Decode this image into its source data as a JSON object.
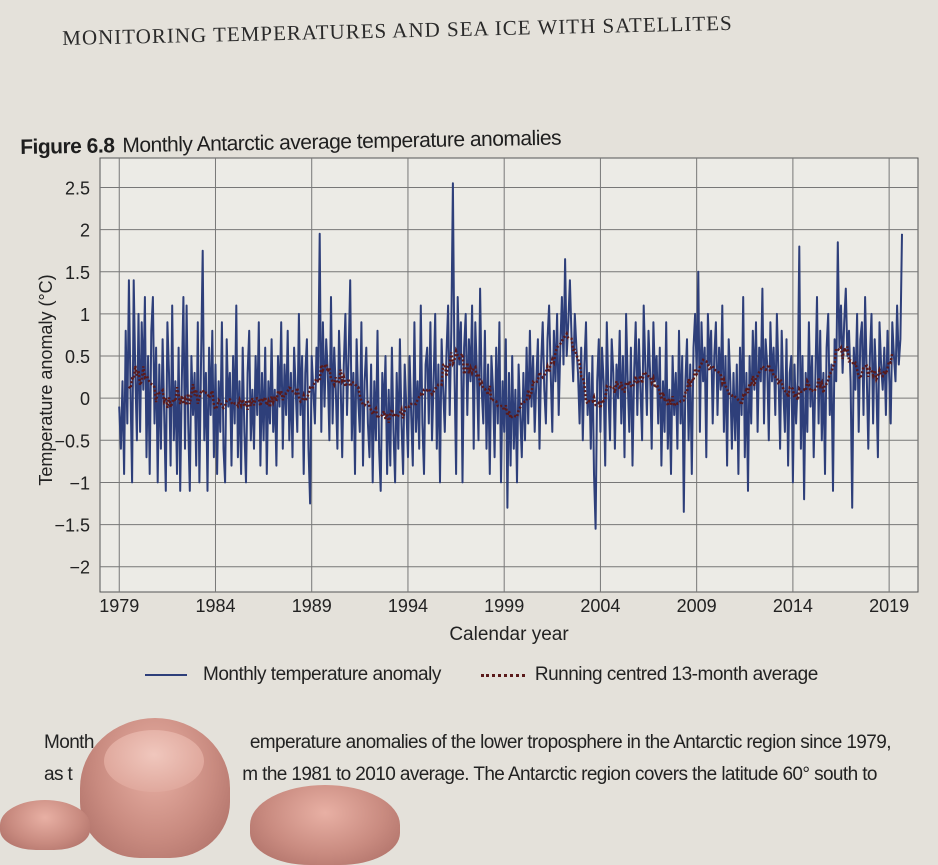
{
  "page": {
    "running_header": "MONITORING TEMPERATURES AND SEA ICE WITH SATELLITES",
    "figure_label": "Figure 6.8",
    "figure_title": "Monthly Antarctic average temperature anomalies",
    "caption_line1_left": "Month",
    "caption_line1_right": "emperature anomalies of the lower troposphere in the Antarctic region since 1979,",
    "caption_line2_left": "as t",
    "caption_line2_right": "m the 1981 to 2010 average. The Antarctic region covers the latitude 60° south to"
  },
  "chart_data": {
    "type": "line",
    "title": "Monthly Antarctic average temperature anomalies",
    "xlabel": "Calendar year",
    "ylabel": "Temperature anomaly (°C)",
    "xlim": [
      1978,
      2020.5
    ],
    "ylim": [
      -2.3,
      2.85
    ],
    "xticks": [
      "1979",
      "1984",
      "1989",
      "1994",
      "1999",
      "2004",
      "2009",
      "2014",
      "2019"
    ],
    "yticks": [
      "2.5",
      "2",
      "1.5",
      "1",
      "0.5",
      "0",
      "−0.5",
      "−1",
      "−1.5",
      "−2"
    ],
    "ytick_values": [
      2.5,
      2,
      1.5,
      1,
      0.5,
      0,
      -0.5,
      -1,
      -1.5,
      -2
    ],
    "grid": true,
    "legend_position": "bottom",
    "legend": [
      "Monthly temperature anomaly",
      "Running centred 13-month average"
    ],
    "colors": {
      "monthly": "#2e3f7a",
      "average": "#5a1a1a"
    },
    "start_year": 1979,
    "running_window_months": 13,
    "series": [
      {
        "name": "Monthly temperature anomaly",
        "values": [
          -0.1,
          -0.6,
          0.2,
          -0.9,
          0.8,
          -0.3,
          1.4,
          0.1,
          -1.0,
          1.4,
          0.3,
          -0.5,
          1.0,
          -0.4,
          0.9,
          0.1,
          1.2,
          -0.7,
          0.5,
          -0.9,
          0.8,
          1.2,
          -0.3,
          0.6,
          -1.0,
          0.4,
          -0.6,
          0.7,
          -0.2,
          -1.1,
          0.9,
          0.3,
          -0.8,
          1.1,
          -0.5,
          0.2,
          -0.9,
          0.6,
          -1.1,
          0.2,
          1.2,
          -0.6,
          1.1,
          -0.3,
          -1.1,
          0.5,
          -0.2,
          0.3,
          -0.8,
          0.9,
          -1.0,
          0.4,
          1.75,
          -0.5,
          0.3,
          -1.1,
          0.6,
          -0.2,
          0.8,
          -0.7,
          0.4,
          -0.9,
          0.2,
          -0.4,
          0.9,
          -0.6,
          -1.0,
          0.7,
          -0.1,
          0.3,
          -0.8,
          0.5,
          -0.3,
          1.1,
          -0.7,
          0.2,
          -0.9,
          0.6,
          -0.4,
          -1.0,
          0.3,
          0.8,
          -0.5,
          0.1,
          -0.6,
          0.5,
          -0.2,
          0.9,
          -0.8,
          0.3,
          -0.5,
          0.6,
          -0.9,
          0.2,
          -0.3,
          0.7,
          -0.4,
          0.1,
          -0.8,
          0.5,
          -0.1,
          0.9,
          -0.6,
          0.4,
          -0.2,
          0.8,
          -0.5,
          0.3,
          -0.7,
          0.6,
          0.1,
          -0.4,
          1.0,
          -0.2,
          0.5,
          -0.9,
          0.3,
          0.7,
          -0.6,
          -1.25,
          0.5,
          0.1,
          -0.3,
          0.6,
          0.2,
          1.95,
          -0.4,
          0.9,
          -0.1,
          0.7,
          0.3,
          -0.5,
          1.2,
          -0.3,
          0.6,
          0.1,
          -0.6,
          0.8,
          0.2,
          -0.7,
          0.4,
          1.0,
          -0.2,
          0.5,
          1.4,
          -0.5,
          0.3,
          -0.9,
          0.7,
          0.0,
          -0.4,
          0.9,
          -0.8,
          0.2,
          0.6,
          -0.3,
          -0.7,
          0.4,
          -1.0,
          0.2,
          -0.5,
          0.8,
          -0.6,
          -1.1,
          0.3,
          -0.2,
          0.5,
          -0.9,
          0.1,
          -0.8,
          0.6,
          -0.4,
          -1.0,
          0.3,
          -0.6,
          0.7,
          -0.3,
          -0.9,
          0.4,
          -0.1,
          -0.7,
          0.5,
          -0.2,
          -0.8,
          0.9,
          -0.4,
          0.2,
          -0.6,
          1.1,
          -0.3,
          -0.9,
          0.4,
          0.6,
          -0.3,
          0.9,
          -0.5,
          0.2,
          1.0,
          -0.6,
          0.4,
          -1.0,
          0.7,
          0.1,
          -0.4,
          0.5,
          1.1,
          -0.2,
          0.8,
          2.55,
          0.3,
          -0.9,
          1.2,
          0.4,
          0.9,
          -1.0,
          0.6,
          1.0,
          -0.2,
          0.7,
          0.2,
          1.1,
          -0.6,
          0.9,
          0.3,
          -0.5,
          1.3,
          0.1,
          -0.3,
          0.8,
          -0.6,
          0.4,
          -0.9,
          0.5,
          0.1,
          -0.7,
          0.6,
          -0.3,
          0.9,
          -1.0,
          0.2,
          -0.4,
          0.7,
          -1.3,
          0.3,
          -0.8,
          0.5,
          -0.6,
          0.1,
          -1.0,
          0.4,
          -0.2,
          -0.7,
          0.3,
          -0.5,
          0.6,
          -0.3,
          0.8,
          -0.1,
          0.5,
          -0.4,
          0.2,
          0.7,
          -0.6,
          0.4,
          0.9,
          0.1,
          -0.3,
          0.7,
          1.1,
          0.3,
          -0.4,
          0.8,
          0.2,
          1.0,
          -0.2,
          0.6,
          1.2,
          0.4,
          1.65,
          0.5,
          0.9,
          1.4,
          0.7,
          0.2,
          1.0,
          0.6,
          0.3,
          -0.3,
          0.6,
          -0.5,
          0.4,
          0.9,
          -0.2,
          0.3,
          -0.6,
          0.5,
          -0.9,
          -1.55,
          0.2,
          0.7,
          -0.4,
          0.6,
          0.2,
          -0.8,
          0.9,
          0.1,
          -0.5,
          0.7,
          0.3,
          -0.6,
          0.4,
          0.0,
          0.8,
          -0.3,
          0.5,
          -0.7,
          1.0,
          0.2,
          -0.4,
          0.6,
          -0.8,
          0.3,
          0.9,
          -0.2,
          0.7,
          0.1,
          -0.5,
          1.1,
          0.4,
          -0.2,
          0.8,
          0.3,
          -0.6,
          0.9,
          0.2,
          0.5,
          -0.3,
          0.6,
          -0.8,
          0.2,
          -0.4,
          0.9,
          -0.6,
          0.1,
          -0.9,
          0.5,
          -0.2,
          0.3,
          -0.6,
          0.8,
          -0.3,
          0.5,
          -1.35,
          0.2,
          0.7,
          -0.5,
          0.4,
          -0.9,
          0.6,
          1.0,
          0.3,
          1.5,
          -0.4,
          0.9,
          0.2,
          0.6,
          -0.7,
          1.0,
          0.4,
          0.8,
          -0.3,
          0.5,
          0.9,
          -0.2,
          0.6,
          0.1,
          1.1,
          -0.4,
          0.5,
          -0.8,
          0.7,
          0.2,
          -0.6,
          0.3,
          -0.5,
          0.4,
          -0.9,
          0.6,
          -0.2,
          1.2,
          -0.7,
          0.3,
          -1.1,
          0.5,
          -0.3,
          0.8,
          0.1,
          0.9,
          -0.4,
          0.6,
          0.2,
          1.3,
          -0.3,
          0.7,
          0.4,
          -0.5,
          0.9,
          0.2,
          0.6,
          -0.2,
          1.0,
          0.3,
          -0.6,
          0.8,
          0.1,
          -0.4,
          0.7,
          -0.8,
          0.3,
          0.5,
          -1.0,
          0.4,
          -0.3,
          0.2,
          1.8,
          -0.6,
          0.5,
          -1.2,
          0.3,
          -0.4,
          0.9,
          -0.1,
          0.5,
          -0.7,
          0.2,
          1.2,
          -0.3,
          0.8,
          -0.5,
          0.3,
          -0.9,
          0.6,
          1.0,
          -0.2,
          0.4,
          -1.1,
          0.7,
          0.2,
          1.85,
          0.6,
          1.1,
          0.3,
          0.9,
          1.3,
          0.5,
          0.8,
          0.2,
          -1.3,
          0.6,
          0.1,
          1.0,
          -0.4,
          0.7,
          0.9,
          -0.2,
          1.2,
          0.3,
          -0.6,
          0.5,
          1.0,
          -0.3,
          0.7,
          0.2,
          -0.7,
          0.9,
          0.4,
          0.1,
          0.6,
          -0.2,
          0.8,
          0.3,
          -0.3,
          0.9,
          0.5,
          0.2,
          1.1,
          0.4,
          0.7,
          1.95
        ]
      }
    ]
  }
}
